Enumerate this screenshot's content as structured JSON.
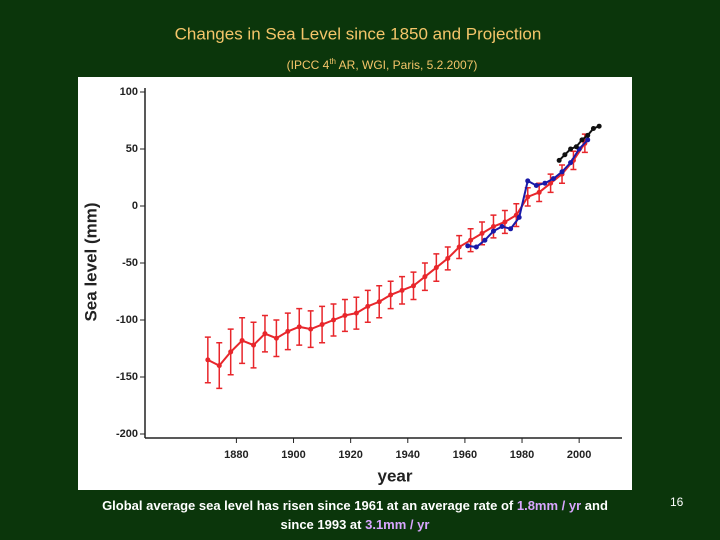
{
  "chart_data": {
    "type": "line",
    "title": "Changes in Sea Level since 1850 and Projection",
    "subtitle": [
      "(IPCC 4",
      "th",
      " AR, WGI, Paris, 5.2.2007)"
    ],
    "y_label": "Sea level (mm)",
    "x_label": "year",
    "xlim": [
      1848,
      2015
    ],
    "ylim": [
      -200,
      100
    ],
    "xticks": [
      1880,
      1900,
      1920,
      1940,
      1960,
      1980,
      2000
    ],
    "yticks": [
      -200,
      -150,
      -100,
      -50,
      0,
      50,
      100
    ],
    "grid": false,
    "series": [
      {
        "color": "#e8262b",
        "x": [
          1870,
          1874,
          1878,
          1882,
          1886,
          1890,
          1894,
          1898,
          1902,
          1906,
          1910,
          1914,
          1918,
          1922,
          1926,
          1930,
          1934,
          1938,
          1942,
          1946,
          1950,
          1954,
          1958,
          1962,
          1966,
          1970,
          1974,
          1978,
          1982,
          1986,
          1990,
          1994,
          1998,
          2002
        ],
        "values": [
          -135,
          -140,
          -128,
          -118,
          -122,
          -112,
          -116,
          -110,
          -106,
          -108,
          -104,
          -100,
          -96,
          -94,
          -88,
          -84,
          -78,
          -74,
          -70,
          -62,
          -54,
          -46,
          -36,
          -30,
          -24,
          -18,
          -14,
          -8,
          8,
          12,
          20,
          28,
          40,
          55
        ],
        "errors": [
          20,
          20,
          20,
          20,
          20,
          16,
          16,
          16,
          16,
          16,
          16,
          14,
          14,
          14,
          14,
          14,
          12,
          12,
          12,
          12,
          12,
          10,
          10,
          10,
          10,
          10,
          10,
          10,
          8,
          8,
          8,
          8,
          8,
          8
        ]
      },
      {
        "color": "#1a1aa8",
        "x": [
          1961,
          1964,
          1967,
          1970,
          1973,
          1976,
          1979,
          1982,
          1985,
          1988,
          1991,
          1994,
          1997,
          2000,
          2003
        ],
        "values": [
          -35,
          -36,
          -30,
          -22,
          -18,
          -20,
          -10,
          22,
          18,
          20,
          24,
          30,
          38,
          50,
          58
        ]
      },
      {
        "color": "#111111",
        "x": [
          1993,
          1995,
          1997,
          1999,
          2001,
          2003,
          2005,
          2007
        ],
        "values": [
          40,
          45,
          50,
          52,
          58,
          62,
          68,
          70
        ]
      }
    ]
  },
  "footer": {
    "parts": [
      "Global average sea level has risen since 1961 at an average rate of ",
      "1.8mm / yr",
      " and",
      "since 1993 at ",
      "3.1mm / yr"
    ],
    "slide_number": "16"
  }
}
